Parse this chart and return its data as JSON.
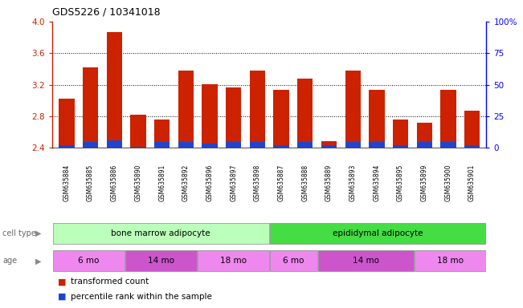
{
  "title": "GDS5226 / 10341018",
  "samples": [
    "GSM635884",
    "GSM635885",
    "GSM635886",
    "GSM635890",
    "GSM635891",
    "GSM635892",
    "GSM635896",
    "GSM635897",
    "GSM635898",
    "GSM635887",
    "GSM635888",
    "GSM635889",
    "GSM635893",
    "GSM635894",
    "GSM635895",
    "GSM635899",
    "GSM635900",
    "GSM635901"
  ],
  "red_values": [
    3.02,
    3.42,
    3.87,
    2.82,
    2.76,
    3.38,
    3.21,
    3.17,
    3.38,
    3.14,
    3.28,
    2.48,
    3.38,
    3.13,
    2.76,
    2.72,
    3.14,
    2.87
  ],
  "blue_heights": [
    0.035,
    0.07,
    0.09,
    0.018,
    0.07,
    0.07,
    0.05,
    0.07,
    0.07,
    0.03,
    0.07,
    0.03,
    0.07,
    0.07,
    0.03,
    0.07,
    0.07,
    0.03
  ],
  "ymin": 2.4,
  "ymax": 4.0,
  "yticks": [
    2.4,
    2.8,
    3.2,
    3.6,
    4.0
  ],
  "right_yticks": [
    0,
    25,
    50,
    75,
    100
  ],
  "right_yticklabels": [
    "0",
    "25",
    "50",
    "75",
    "100%"
  ],
  "bar_color": "#cc2200",
  "blue_color": "#2244cc",
  "grid_lines": [
    2.8,
    3.2,
    3.6
  ],
  "cell_type_groups": [
    {
      "label": "bone marrow adipocyte",
      "start": 0,
      "end": 9,
      "color": "#bbffbb"
    },
    {
      "label": "epididymal adipocyte",
      "start": 9,
      "end": 18,
      "color": "#44dd44"
    }
  ],
  "age_groups": [
    {
      "label": "6 mo",
      "start": 0,
      "end": 3,
      "color": "#ee88ee"
    },
    {
      "label": "14 mo",
      "start": 3,
      "end": 6,
      "color": "#cc55cc"
    },
    {
      "label": "18 mo",
      "start": 6,
      "end": 9,
      "color": "#ee88ee"
    },
    {
      "label": "6 mo",
      "start": 9,
      "end": 11,
      "color": "#ee88ee"
    },
    {
      "label": "14 mo",
      "start": 11,
      "end": 15,
      "color": "#cc55cc"
    },
    {
      "label": "18 mo",
      "start": 15,
      "end": 18,
      "color": "#ee88ee"
    }
  ],
  "legend_items": [
    {
      "label": "transformed count",
      "color": "#cc2200"
    },
    {
      "label": "percentile rank within the sample",
      "color": "#2244cc"
    }
  ],
  "xticklabel_bg": "#cccccc"
}
